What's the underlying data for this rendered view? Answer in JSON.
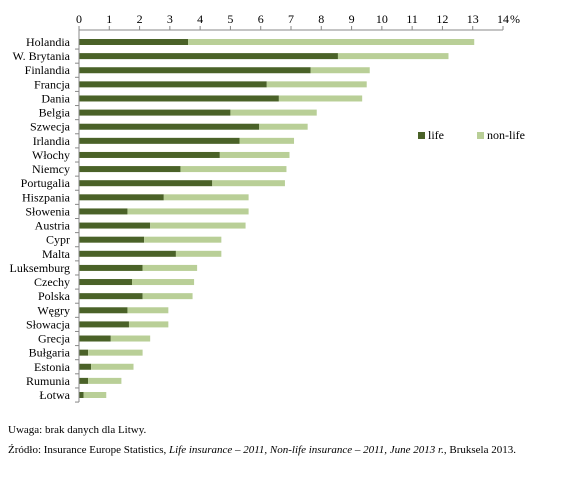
{
  "chart_data": {
    "type": "bar",
    "orientation": "horizontal",
    "stacked": true,
    "x_unit": "%",
    "xlim": [
      0,
      14
    ],
    "xticks": [
      0,
      1,
      2,
      3,
      4,
      5,
      6,
      7,
      8,
      9,
      10,
      11,
      12,
      13,
      14
    ],
    "categories": [
      "Holandia",
      "W. Brytania",
      "Finlandia",
      "Francja",
      "Dania",
      "Belgia",
      "Szwecja",
      "Irlandia",
      "Włochy",
      "Niemcy",
      "Portugalia",
      "Hiszpania",
      "Słowenia",
      "Austria",
      "Cypr",
      "Malta",
      "Luksemburg",
      "Czechy",
      "Polska",
      "Węgry",
      "Słowacja",
      "Grecja",
      "Bułgaria",
      "Estonia",
      "Rumunia",
      "Łotwa"
    ],
    "series": [
      {
        "name": "life",
        "color": "#4a6228",
        "values": [
          3.6,
          8.55,
          7.65,
          6.2,
          6.6,
          5.0,
          5.95,
          5.3,
          4.65,
          3.35,
          4.4,
          2.8,
          1.6,
          2.35,
          2.15,
          3.2,
          2.1,
          1.75,
          2.1,
          1.6,
          1.65,
          1.05,
          0.3,
          0.4,
          0.3,
          0.15
        ]
      },
      {
        "name": "non-life",
        "color": "#b9cf97",
        "values": [
          9.45,
          3.65,
          1.95,
          3.3,
          2.75,
          2.85,
          1.6,
          1.8,
          2.3,
          3.5,
          2.4,
          2.8,
          4.0,
          3.15,
          2.55,
          1.5,
          1.8,
          2.05,
          1.65,
          1.35,
          1.3,
          1.3,
          1.8,
          1.4,
          1.1,
          0.75
        ]
      }
    ],
    "legend_position": "right",
    "grid": false
  },
  "notes": {
    "uwaga": "Uwaga: brak danych dla Litwy.",
    "source_prefix": "Źródło: Insurance Europe Statistics, ",
    "source_italic": "Life insurance – 2011, Non-life  insurance – 2011, June 2013 r.",
    "source_suffix": ", Bruksela 2013."
  }
}
